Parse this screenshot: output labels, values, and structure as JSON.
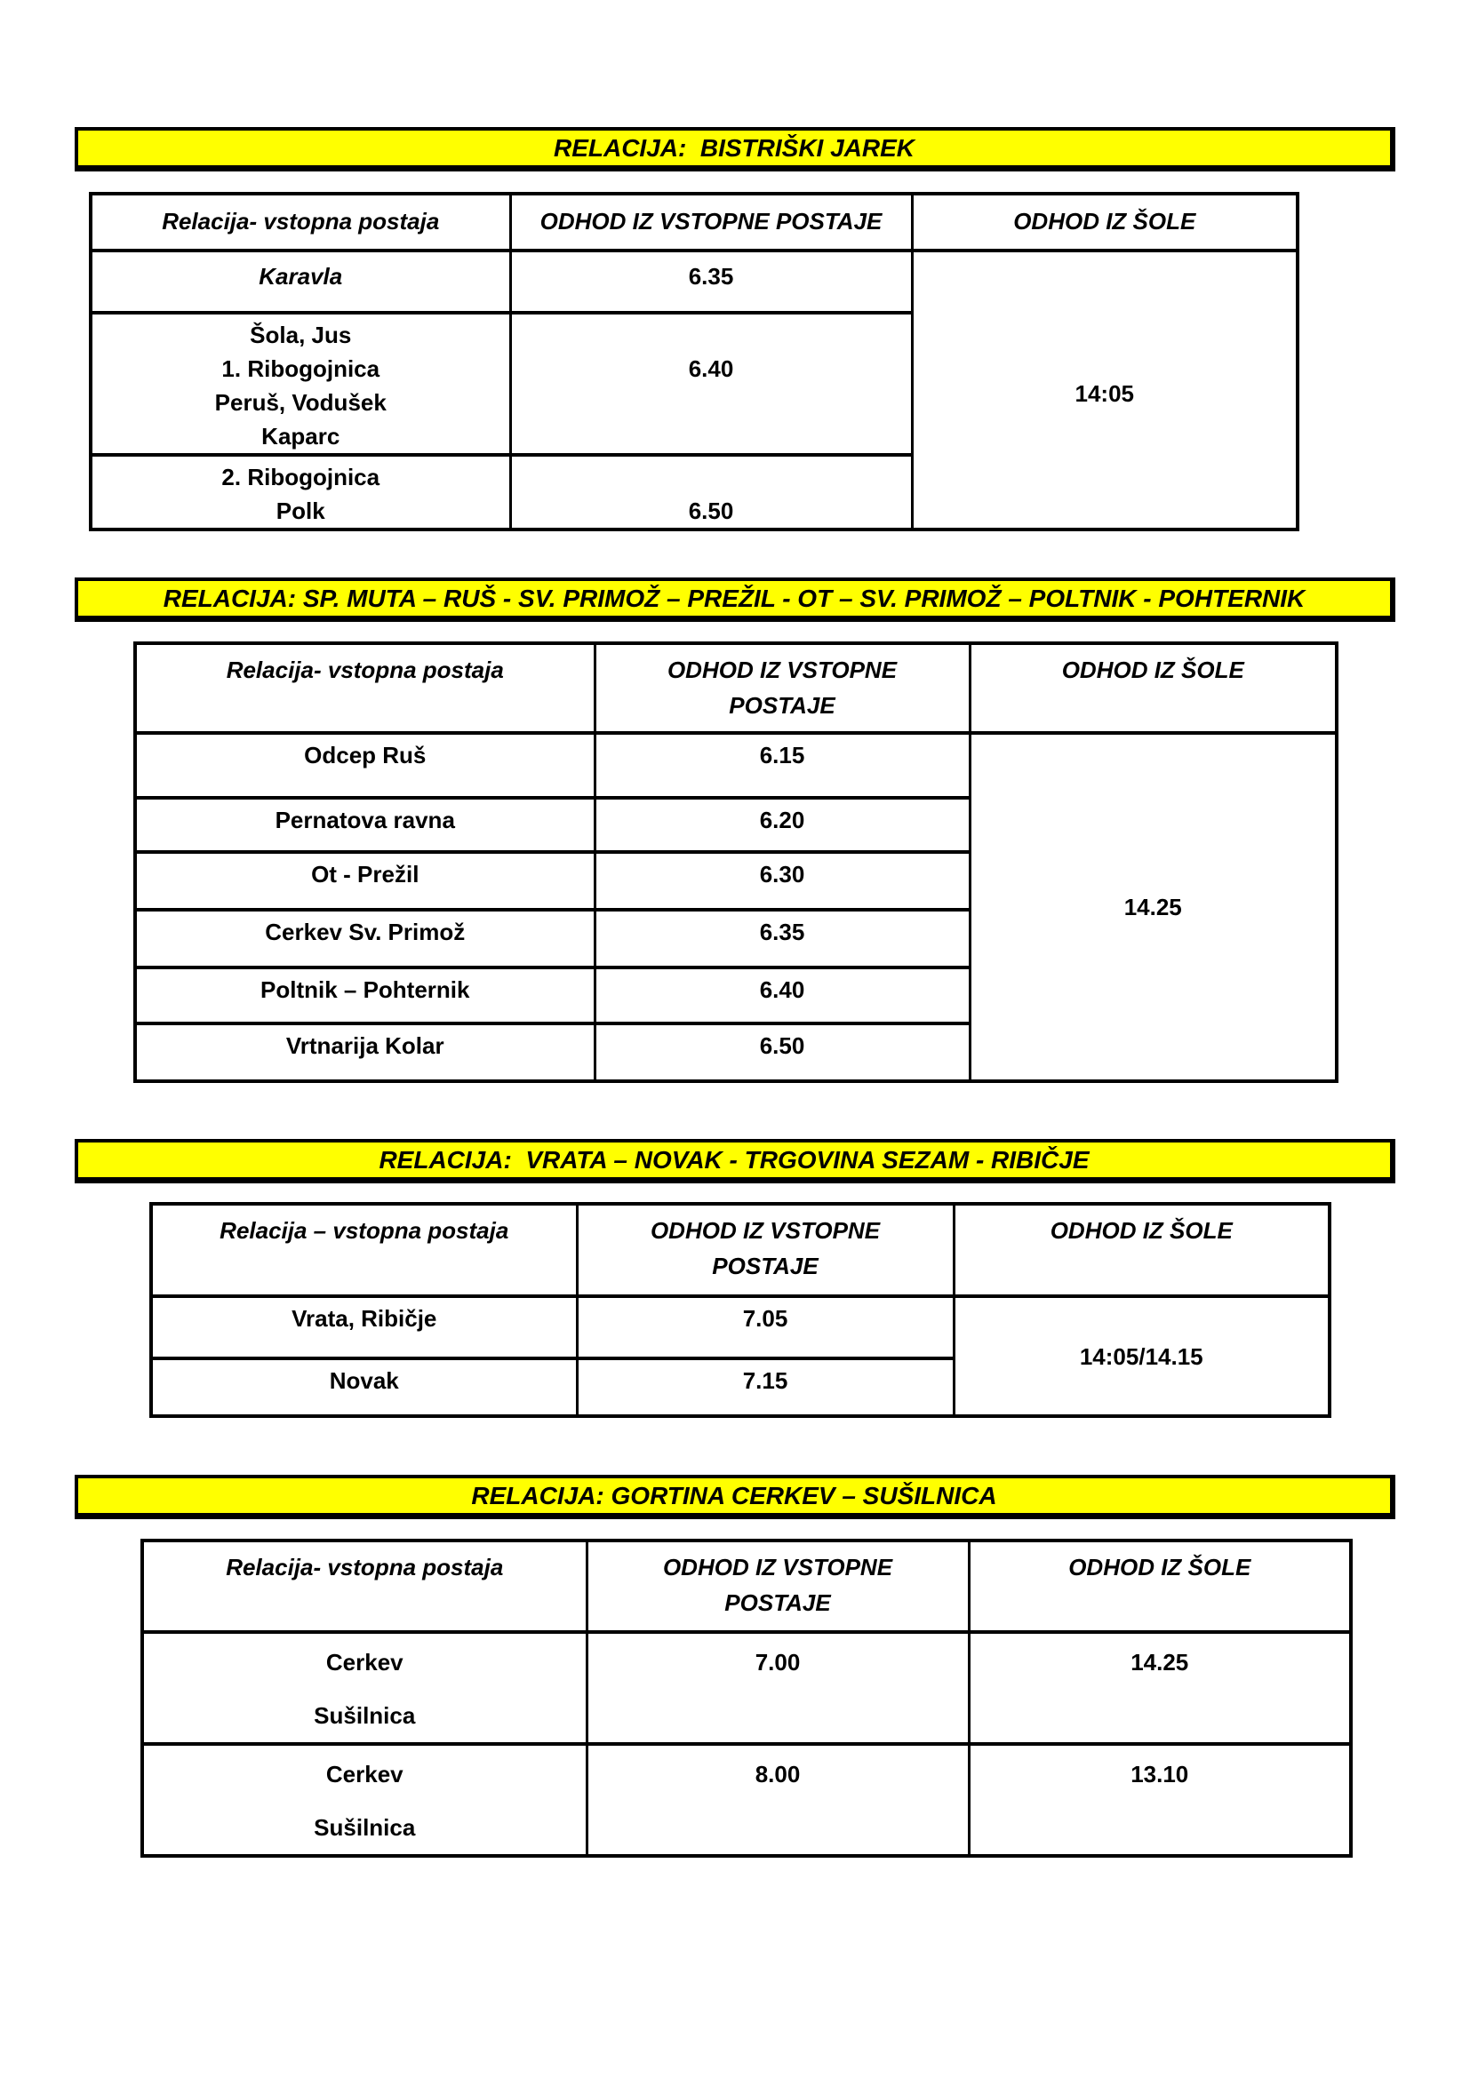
{
  "colors": {
    "page_background": "#ffffff",
    "banner_background": "#ffff00",
    "border": "#000000",
    "text": "#000000"
  },
  "sections": [
    {
      "banner": "RELACIJA:  BISTRIŠKI JAREK",
      "header": {
        "relacija": "Relacija- vstopna postaja",
        "odhod_postaja": "ODHOD IZ VSTOPNE POSTAJE",
        "odhod_sola": "ODHOD IZ ŠOLE"
      },
      "rows": [
        {
          "postaja": "Karavla",
          "odhod": "6.35"
        },
        {
          "postaja": [
            "Šola, Jus",
            "1. Ribogojnica",
            "Peruš, Vodušek",
            "Kaparc"
          ],
          "odhod": [
            "",
            "6.40"
          ]
        },
        {
          "postaja": [
            "2. Ribogojnica",
            "Polk"
          ],
          "odhod": [
            "",
            "6.50"
          ]
        }
      ],
      "odhod_sola": "14:05"
    },
    {
      "banner": "RELACIJA: SP. MUTA – RUŠ - SV. PRIMOŽ – PREŽIL - OT – SV. PRIMOŽ – POLTNIK - POHTERNIK",
      "header": {
        "relacija": "Relacija- vstopna postaja",
        "odhod_postaja": [
          "ODHOD IZ VSTOPNE",
          "POSTAJE"
        ],
        "odhod_sola": "ODHOD IZ ŠOLE"
      },
      "rows": [
        {
          "postaja": "Odcep Ruš",
          "odhod": "6.15"
        },
        {
          "postaja": "Pernatova ravna",
          "odhod": "6.20"
        },
        {
          "postaja": "Ot - Prežil",
          "odhod": "6.30"
        },
        {
          "postaja": "Cerkev Sv. Primož",
          "odhod": "6.35"
        },
        {
          "postaja": "Poltnik – Pohternik",
          "odhod": "6.40"
        },
        {
          "postaja": "Vrtnarija Kolar",
          "odhod": "6.50"
        }
      ],
      "odhod_sola": "14.25"
    },
    {
      "banner": "RELACIJA:  VRATA – NOVAK - TRGOVINA SEZAM - RIBIČJE",
      "header": {
        "relacija": "Relacija – vstopna postaja",
        "odhod_postaja": [
          "ODHOD IZ VSTOPNE",
          "POSTAJE"
        ],
        "odhod_sola": "ODHOD IZ ŠOLE"
      },
      "rows": [
        {
          "postaja": "Vrata, Ribičje",
          "odhod": "7.05"
        },
        {
          "postaja": "Novak",
          "odhod": "7.15"
        }
      ],
      "odhod_sola": "14:05/14.15"
    },
    {
      "banner": "RELACIJA: GORTINA CERKEV – SUŠILNICA",
      "header": {
        "relacija": "Relacija- vstopna postaja",
        "odhod_postaja": [
          "ODHOD IZ VSTOPNE",
          "POSTAJE"
        ],
        "odhod_sola": "ODHOD IZ ŠOLE"
      },
      "rows": [
        {
          "postaja": [
            "Cerkev",
            "Sušilnica"
          ],
          "odhod": "7.00",
          "odhod_sola": "14.25"
        },
        {
          "postaja": [
            "Cerkev",
            "Sušilnica"
          ],
          "odhod": "8.00",
          "odhod_sola": "13.10"
        }
      ]
    }
  ]
}
